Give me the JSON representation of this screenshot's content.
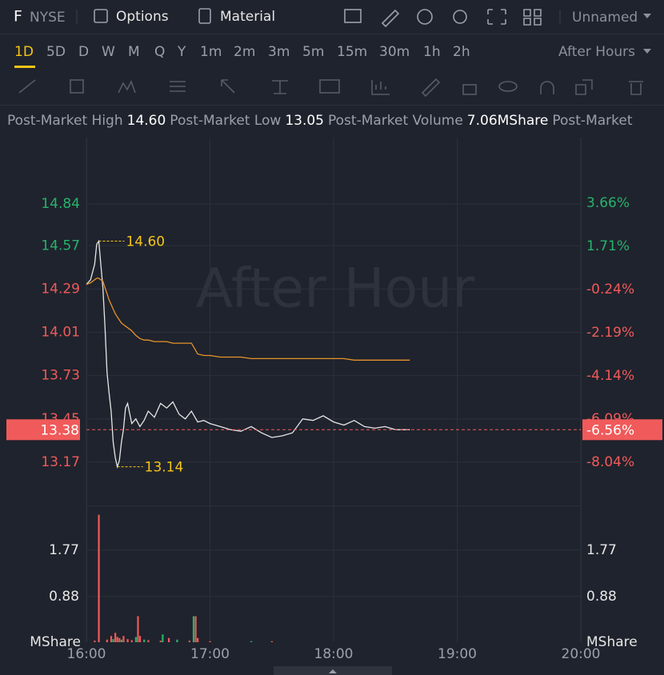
{
  "toolbar": {
    "symbol": "F",
    "exchange": "NYSE",
    "options": "Options",
    "material": "Material",
    "layout": "Unnamed"
  },
  "periods": [
    "1D",
    "5D",
    "D",
    "W",
    "M",
    "Q",
    "Y",
    "1m",
    "2m",
    "3m",
    "5m",
    "15m",
    "30m",
    "1h",
    "2h"
  ],
  "session": "After Hours",
  "stats": [
    {
      "label": "Post-Market High",
      "value": "14.60"
    },
    {
      "label": "Post-Market Low",
      "value": "13.05"
    },
    {
      "label": "Post-Market Volume",
      "value": "7.06MShare"
    },
    {
      "label": "Post-Market"
    }
  ],
  "chart_data": {
    "type": "line",
    "watermark": "After Hour",
    "x": [
      0,
      2,
      4,
      5,
      6,
      7,
      8,
      9,
      10,
      11,
      12,
      13,
      14,
      15,
      16,
      17,
      18,
      19,
      20,
      22,
      24,
      26,
      28,
      30,
      33,
      36,
      39,
      42,
      45,
      48,
      51,
      54,
      57,
      60,
      65,
      70,
      75,
      80,
      85,
      90,
      95,
      100,
      105,
      110,
      115,
      120,
      125,
      130,
      135,
      140,
      145,
      150,
      155,
      157
    ],
    "xlim": [
      0,
      240
    ],
    "xticks": [
      {
        "value": 0,
        "label": "16:00"
      },
      {
        "value": 60,
        "label": "17:00"
      },
      {
        "value": 120,
        "label": "18:00"
      },
      {
        "value": 180,
        "label": "19:00"
      },
      {
        "value": 240,
        "label": "20:00"
      }
    ],
    "series": [
      {
        "color": "#e6e6e6",
        "values": [
          14.32,
          14.35,
          14.45,
          14.58,
          14.6,
          14.45,
          14.3,
          14.05,
          13.75,
          13.62,
          13.5,
          13.3,
          13.2,
          13.14,
          13.18,
          13.3,
          13.38,
          13.52,
          13.55,
          13.42,
          13.45,
          13.4,
          13.44,
          13.5,
          13.46,
          13.55,
          13.52,
          13.56,
          13.48,
          13.45,
          13.5,
          13.43,
          13.44,
          13.42,
          13.4,
          13.38,
          13.37,
          13.4,
          13.36,
          13.33,
          13.34,
          13.36,
          13.45,
          13.44,
          13.47,
          13.43,
          13.41,
          13.44,
          13.4,
          13.39,
          13.4,
          13.38,
          13.38,
          13.38
        ]
      },
      {
        "color": "#e8932b",
        "values": [
          14.32,
          14.33,
          14.35,
          14.36,
          14.36,
          14.35,
          14.34,
          14.3,
          14.26,
          14.22,
          14.19,
          14.16,
          14.13,
          14.11,
          14.09,
          14.07,
          14.06,
          14.05,
          14.04,
          14.02,
          13.99,
          13.97,
          13.96,
          13.96,
          13.95,
          13.95,
          13.95,
          13.94,
          13.94,
          13.94,
          13.94,
          13.87,
          13.86,
          13.86,
          13.85,
          13.85,
          13.85,
          13.84,
          13.84,
          13.84,
          13.84,
          13.84,
          13.84,
          13.84,
          13.84,
          13.84,
          13.84,
          13.83,
          13.83,
          13.83,
          13.83,
          13.83,
          13.83,
          13.83
        ]
      }
    ],
    "ylim": [
      12.89,
      15.27
    ],
    "yticks": [
      14.84,
      14.57,
      14.29,
      14.01,
      13.73,
      13.45,
      13.17
    ],
    "y2lim": [
      -9.99,
      6.63
    ],
    "y2ticks": [
      {
        "value": 3.66,
        "label": "3.66%"
      },
      {
        "value": 1.71,
        "label": "1.71%"
      },
      {
        "value": -0.24,
        "label": "-0.24%"
      },
      {
        "value": -2.19,
        "label": "-2.19%"
      },
      {
        "value": -4.14,
        "label": "-4.14%"
      },
      {
        "value": -6.09,
        "label": "-6.09%"
      },
      {
        "value": -8.04,
        "label": "-8.04%"
      }
    ],
    "last": {
      "value": 13.38,
      "change": {
        "value": -6.56,
        "label": "-6.56%"
      }
    },
    "annotations": [
      {
        "x": 6,
        "value": 14.6,
        "label": "14.60"
      },
      {
        "x": 15,
        "value": 13.14,
        "label": "13.14"
      }
    ],
    "volume": {
      "unit": "MShare",
      "x": [
        4,
        6,
        10,
        12,
        13,
        14,
        15,
        16,
        17,
        18,
        20,
        22,
        24,
        25,
        26,
        28,
        30,
        36,
        37,
        40,
        44,
        50,
        52,
        53,
        54,
        60,
        80,
        90
      ],
      "values": [
        0.03,
        2.45,
        0.05,
        0.12,
        0.06,
        0.18,
        0.1,
        0.08,
        0.05,
        0.12,
        0.06,
        0.04,
        0.1,
        0.5,
        0.12,
        0.05,
        0.04,
        0.03,
        0.15,
        0.08,
        0.05,
        0.03,
        0.5,
        0.5,
        0.08,
        0.02,
        0.02,
        0.02
      ],
      "colors": [
        "#f05a5a",
        "#f05a5a",
        "#f05a5a",
        "#f05a5a",
        "#26b36b",
        "#f05a5a",
        "#f05a5a",
        "#f05a5a",
        "#26b36b",
        "#f05a5a",
        "#f05a5a",
        "#f05a5a",
        "#26b36b",
        "#f05a5a",
        "#f05a5a",
        "#26b36b",
        "#f05a5a",
        "#f05a5a",
        "#26b36b",
        "#f05a5a",
        "#26b36b",
        "#f05a5a",
        "#26b36b",
        "#f05a5a",
        "#f05a5a",
        "#f05a5a",
        "#26b36b",
        "#f05a5a"
      ],
      "ylim": [
        0,
        2.63
      ],
      "yticks": [
        1.77,
        0.88
      ]
    }
  }
}
